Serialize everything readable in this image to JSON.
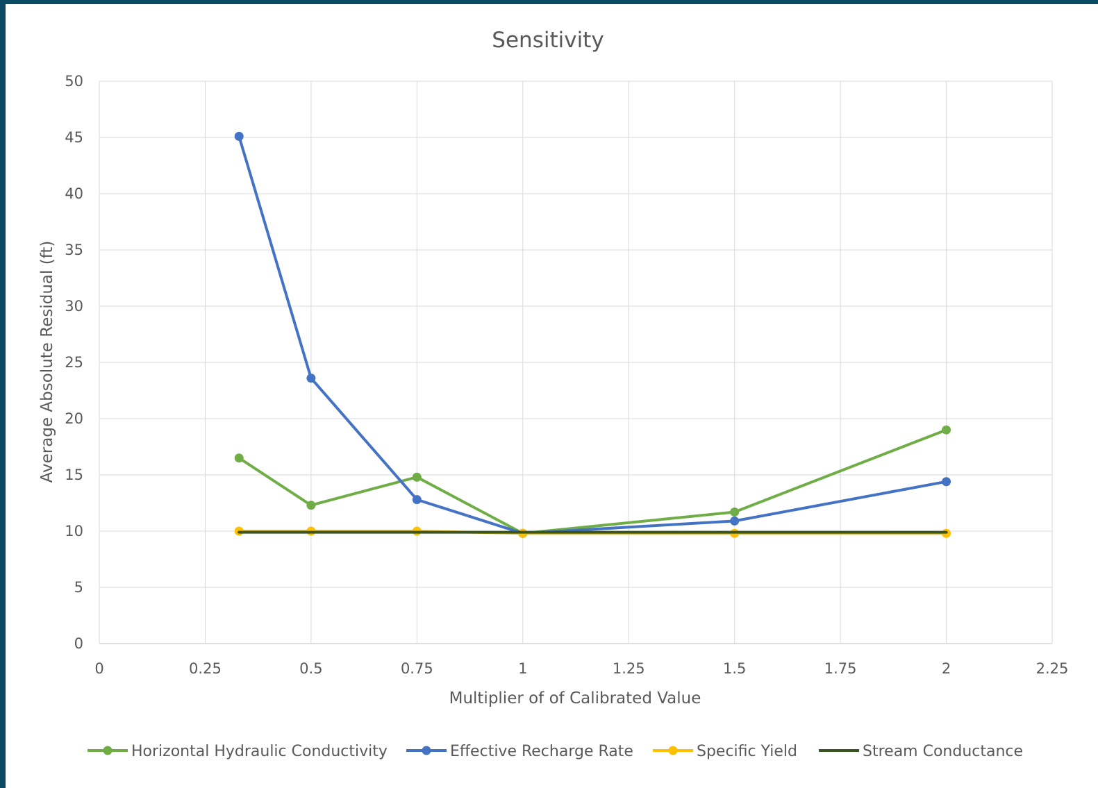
{
  "chart_data": {
    "type": "line",
    "title": "Sensitivity",
    "xlabel": "Multiplier of of Calibrated Value",
    "ylabel": "Average Absolute Residual (ft)",
    "xlim": [
      0,
      2.25
    ],
    "ylim": [
      0,
      50
    ],
    "x_ticks": [
      "0",
      "0.25",
      "0.5",
      "0.75",
      "1",
      "1.25",
      "1.5",
      "1.75",
      "2",
      "2.25"
    ],
    "y_ticks": [
      "0",
      "5",
      "10",
      "15",
      "20",
      "25",
      "30",
      "35",
      "40",
      "45",
      "50"
    ],
    "x_tick_values": [
      0,
      0.25,
      0.5,
      0.75,
      1,
      1.25,
      1.5,
      1.75,
      2,
      2.25
    ],
    "y_tick_values": [
      0,
      5,
      10,
      15,
      20,
      25,
      30,
      35,
      40,
      45,
      50
    ],
    "grid": true,
    "legend_position": "bottom",
    "series": [
      {
        "name": "Horizontal Hydraulic Conductivity",
        "color": "#70ad47",
        "markers": true,
        "x": [
          0.33,
          0.5,
          0.75,
          1,
          1.5,
          2
        ],
        "y": [
          16.5,
          12.3,
          14.8,
          9.8,
          11.7,
          19
        ]
      },
      {
        "name": "Effective Recharge Rate",
        "color": "#4472c4",
        "markers": true,
        "x": [
          0.33,
          0.5,
          0.75,
          1,
          1.5,
          2
        ],
        "y": [
          45.1,
          23.6,
          12.8,
          9.8,
          10.9,
          14.4
        ]
      },
      {
        "name": "Specific Yield",
        "color": "#ffc000",
        "markers": true,
        "x": [
          0.33,
          0.5,
          0.75,
          1,
          1.5,
          2
        ],
        "y": [
          10,
          10,
          10,
          9.8,
          9.8,
          9.8
        ]
      },
      {
        "name": "Stream Conductance",
        "color": "#375623",
        "markers": false,
        "x": [
          0.33,
          0.5,
          0.75,
          1,
          1.5,
          2
        ],
        "y": [
          9.9,
          9.9,
          9.9,
          9.9,
          9.9,
          9.9
        ]
      }
    ]
  }
}
